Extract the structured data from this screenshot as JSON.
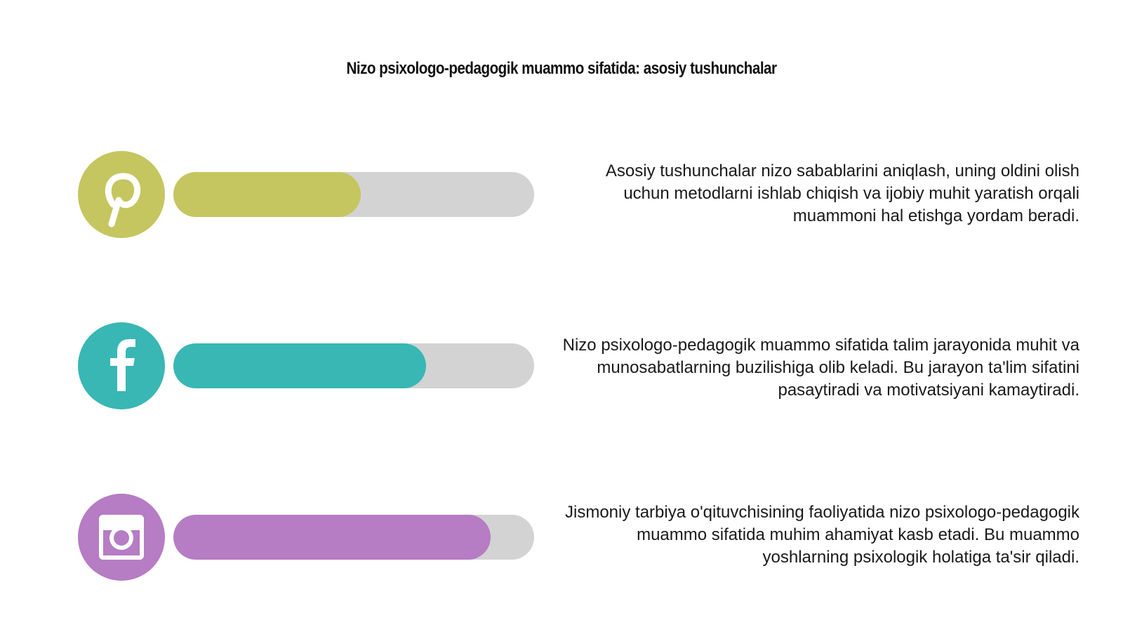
{
  "title": "Nizo psixologo-pedagogik muammo sifatida: asosiy tushunchalar",
  "items": [
    {
      "icon": "pinterest-icon",
      "color": "#c5c65f",
      "progress": 0.52,
      "text": "Asosiy tushunchalar nizo sabablarini aniqlash, uning oldini olish uchun metodlarni ishlab chiqish va ijobiy muhit yaratish orqali muammoni hal etishga yordam beradi."
    },
    {
      "icon": "facebook-icon",
      "color": "#38b7b4",
      "progress": 0.7,
      "text": "Nizo psixologo-pedagogik muammo sifatida talim jarayonida muhit va munosabatlarning buzilishiga olib keladi. Bu jarayon ta'lim sifatini pasaytiradi va motivatsiyani kamaytiradi."
    },
    {
      "icon": "instagram-icon",
      "color": "#b67cc4",
      "progress": 0.88,
      "text": "Jismoniy tarbiya o'qituvchisining faoliyatida nizo psixologo-pedagogik muammo sifatida muhim ahamiyat kasb etadi. Bu muammo yoshlarning psixologik holatiga ta'sir qiladi."
    }
  ]
}
